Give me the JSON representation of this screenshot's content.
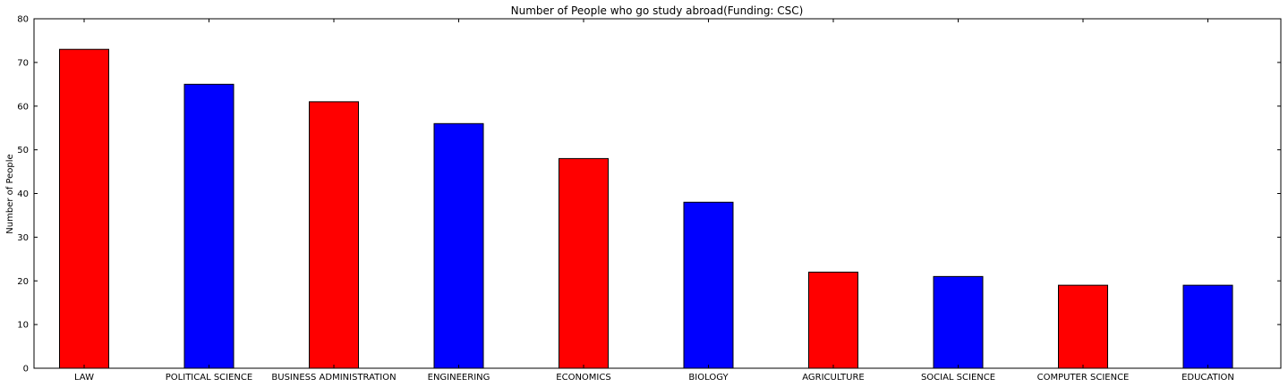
{
  "chart_data": {
    "type": "bar",
    "title": "Number of People who go study abroad(Funding: CSC)",
    "xlabel": "",
    "ylabel": "Number of People",
    "ylim": [
      0,
      80
    ],
    "yticks": [
      0,
      10,
      20,
      30,
      40,
      50,
      60,
      70,
      80
    ],
    "grid": false,
    "categories": [
      "LAW",
      "POLITICAL SCIENCE",
      "BUSINESS ADMINISTRATION",
      "ENGINEERING",
      "ECONOMICS",
      "BIOLOGY",
      "AGRICULTURE",
      "SOCIAL SCIENCE",
      "COMPUTER SCIENCE",
      "EDUCATION"
    ],
    "values": [
      73,
      65,
      61,
      56,
      48,
      38,
      22,
      21,
      19,
      19
    ],
    "colors": [
      "#ff0000",
      "#0000ff",
      "#ff0000",
      "#0000ff",
      "#ff0000",
      "#0000ff",
      "#ff0000",
      "#0000ff",
      "#ff0000",
      "#0000ff"
    ]
  }
}
